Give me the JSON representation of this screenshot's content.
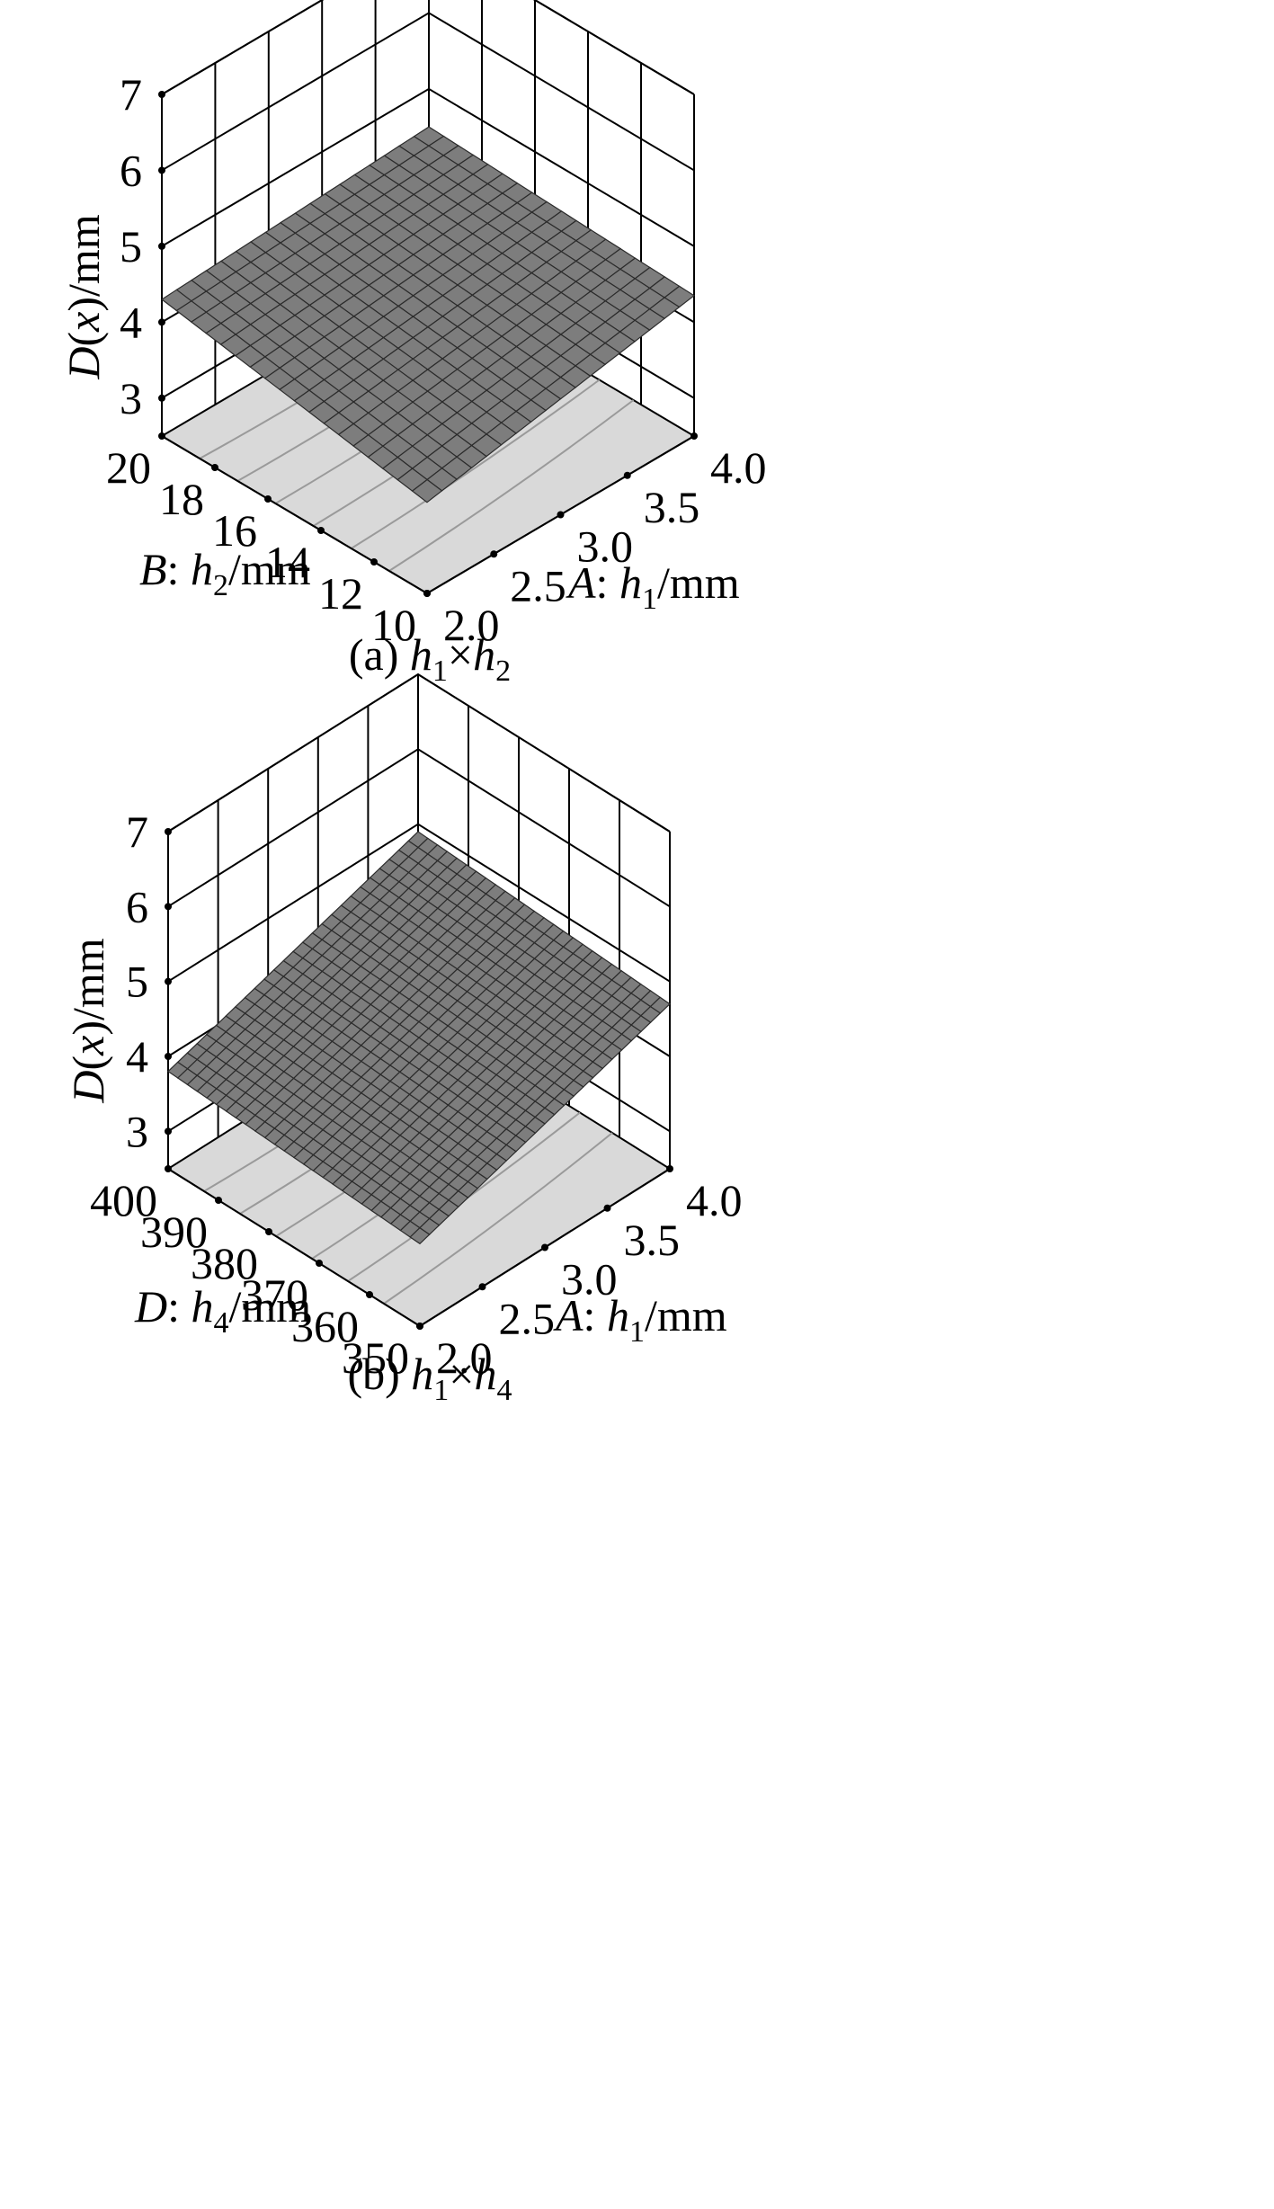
{
  "chart_data": [
    {
      "type": "surface3d",
      "caption": {
        "prefix": "(a) ",
        "var1": "h",
        "sub1": "1",
        "times": "×",
        "var2": "h",
        "sub2": "2"
      },
      "z_axis": {
        "label_var": "D",
        "label_rest_open": "(",
        "label_arg": "x",
        "label_rest_close": ")/mm",
        "ticks": [
          "3",
          "4",
          "5",
          "6",
          "7"
        ],
        "range": [
          2.5,
          7
        ]
      },
      "a_axis": {
        "label_letter": "A",
        "label_colon": ": ",
        "label_var": "h",
        "label_sub": "1",
        "label_unit": "/mm",
        "ticks": [
          "2.0",
          "2.5",
          "3.0",
          "3.5",
          "4.0"
        ],
        "range": [
          2.0,
          4.0
        ]
      },
      "b_axis": {
        "label_letter": "B",
        "label_colon": ": ",
        "label_var": "h",
        "label_sub": "2",
        "label_unit": "/mm",
        "ticks": [
          "10",
          "12",
          "14",
          "16",
          "18",
          "20"
        ],
        "range": [
          10,
          20
        ]
      },
      "surface_corners": {
        "a_min_b_min": 3.7,
        "a_max_b_min": 4.35,
        "a_min_b_max": 4.3,
        "a_max_b_max": 4.5
      },
      "grid_cells": 18
    },
    {
      "type": "surface3d",
      "caption": {
        "prefix": "(b) ",
        "var1": "h",
        "sub1": "1",
        "times": "×",
        "var2": "h",
        "sub2": "4"
      },
      "z_axis": {
        "label_var": "D",
        "label_rest_open": "(",
        "label_arg": "x",
        "label_rest_close": ")/mm",
        "ticks": [
          "3",
          "4",
          "5",
          "6",
          "7"
        ],
        "range": [
          2.5,
          7
        ]
      },
      "a_axis": {
        "label_letter": "A",
        "label_colon": ": ",
        "label_var": "h",
        "label_sub": "1",
        "label_unit": "/mm",
        "ticks": [
          "2.0",
          "2.5",
          "3.0",
          "3.5",
          "4.0"
        ],
        "range": [
          2.0,
          4.0
        ]
      },
      "b_axis": {
        "label_letter": "D",
        "label_colon": ": ",
        "label_var": "h",
        "label_sub": "4",
        "label_unit": "/mm",
        "ticks": [
          "350",
          "360",
          "370",
          "380",
          "390",
          "400"
        ],
        "range": [
          350,
          400
        ]
      },
      "surface_corners": {
        "a_min_b_min": 3.6,
        "a_max_b_min": 4.7,
        "a_min_b_max": 3.8,
        "a_max_b_max": 4.9
      },
      "grid_cells": 26
    }
  ]
}
